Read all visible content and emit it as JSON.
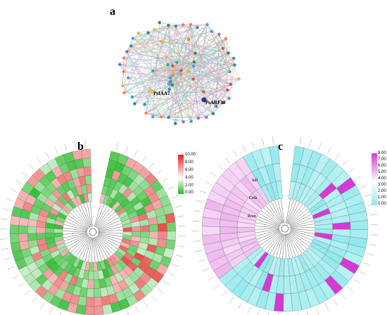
{
  "panels": {
    "a": {
      "label": "a",
      "highlight_nodes": [
        "PsIAA7",
        "PsARF10"
      ]
    },
    "b": {
      "label": "b",
      "scale_ticks": [
        "10.00",
        "8.00",
        "6.00",
        "4.00",
        "2.00",
        "0.00"
      ],
      "colors": {
        "high": "#e0241f",
        "mid": "#ffffff",
        "low": "#1fb81f"
      }
    },
    "c": {
      "label": "c",
      "scale_ticks": [
        "8.00",
        "7.00",
        "6.00",
        "5.00",
        "4.00",
        "3.00",
        "2.00",
        "1.00",
        "0.00"
      ],
      "ring_labels": [
        "Sdl",
        "Coik",
        "Root"
      ],
      "colors": {
        "high": "#d63ad6",
        "low": "#8fe8ec"
      }
    }
  }
}
